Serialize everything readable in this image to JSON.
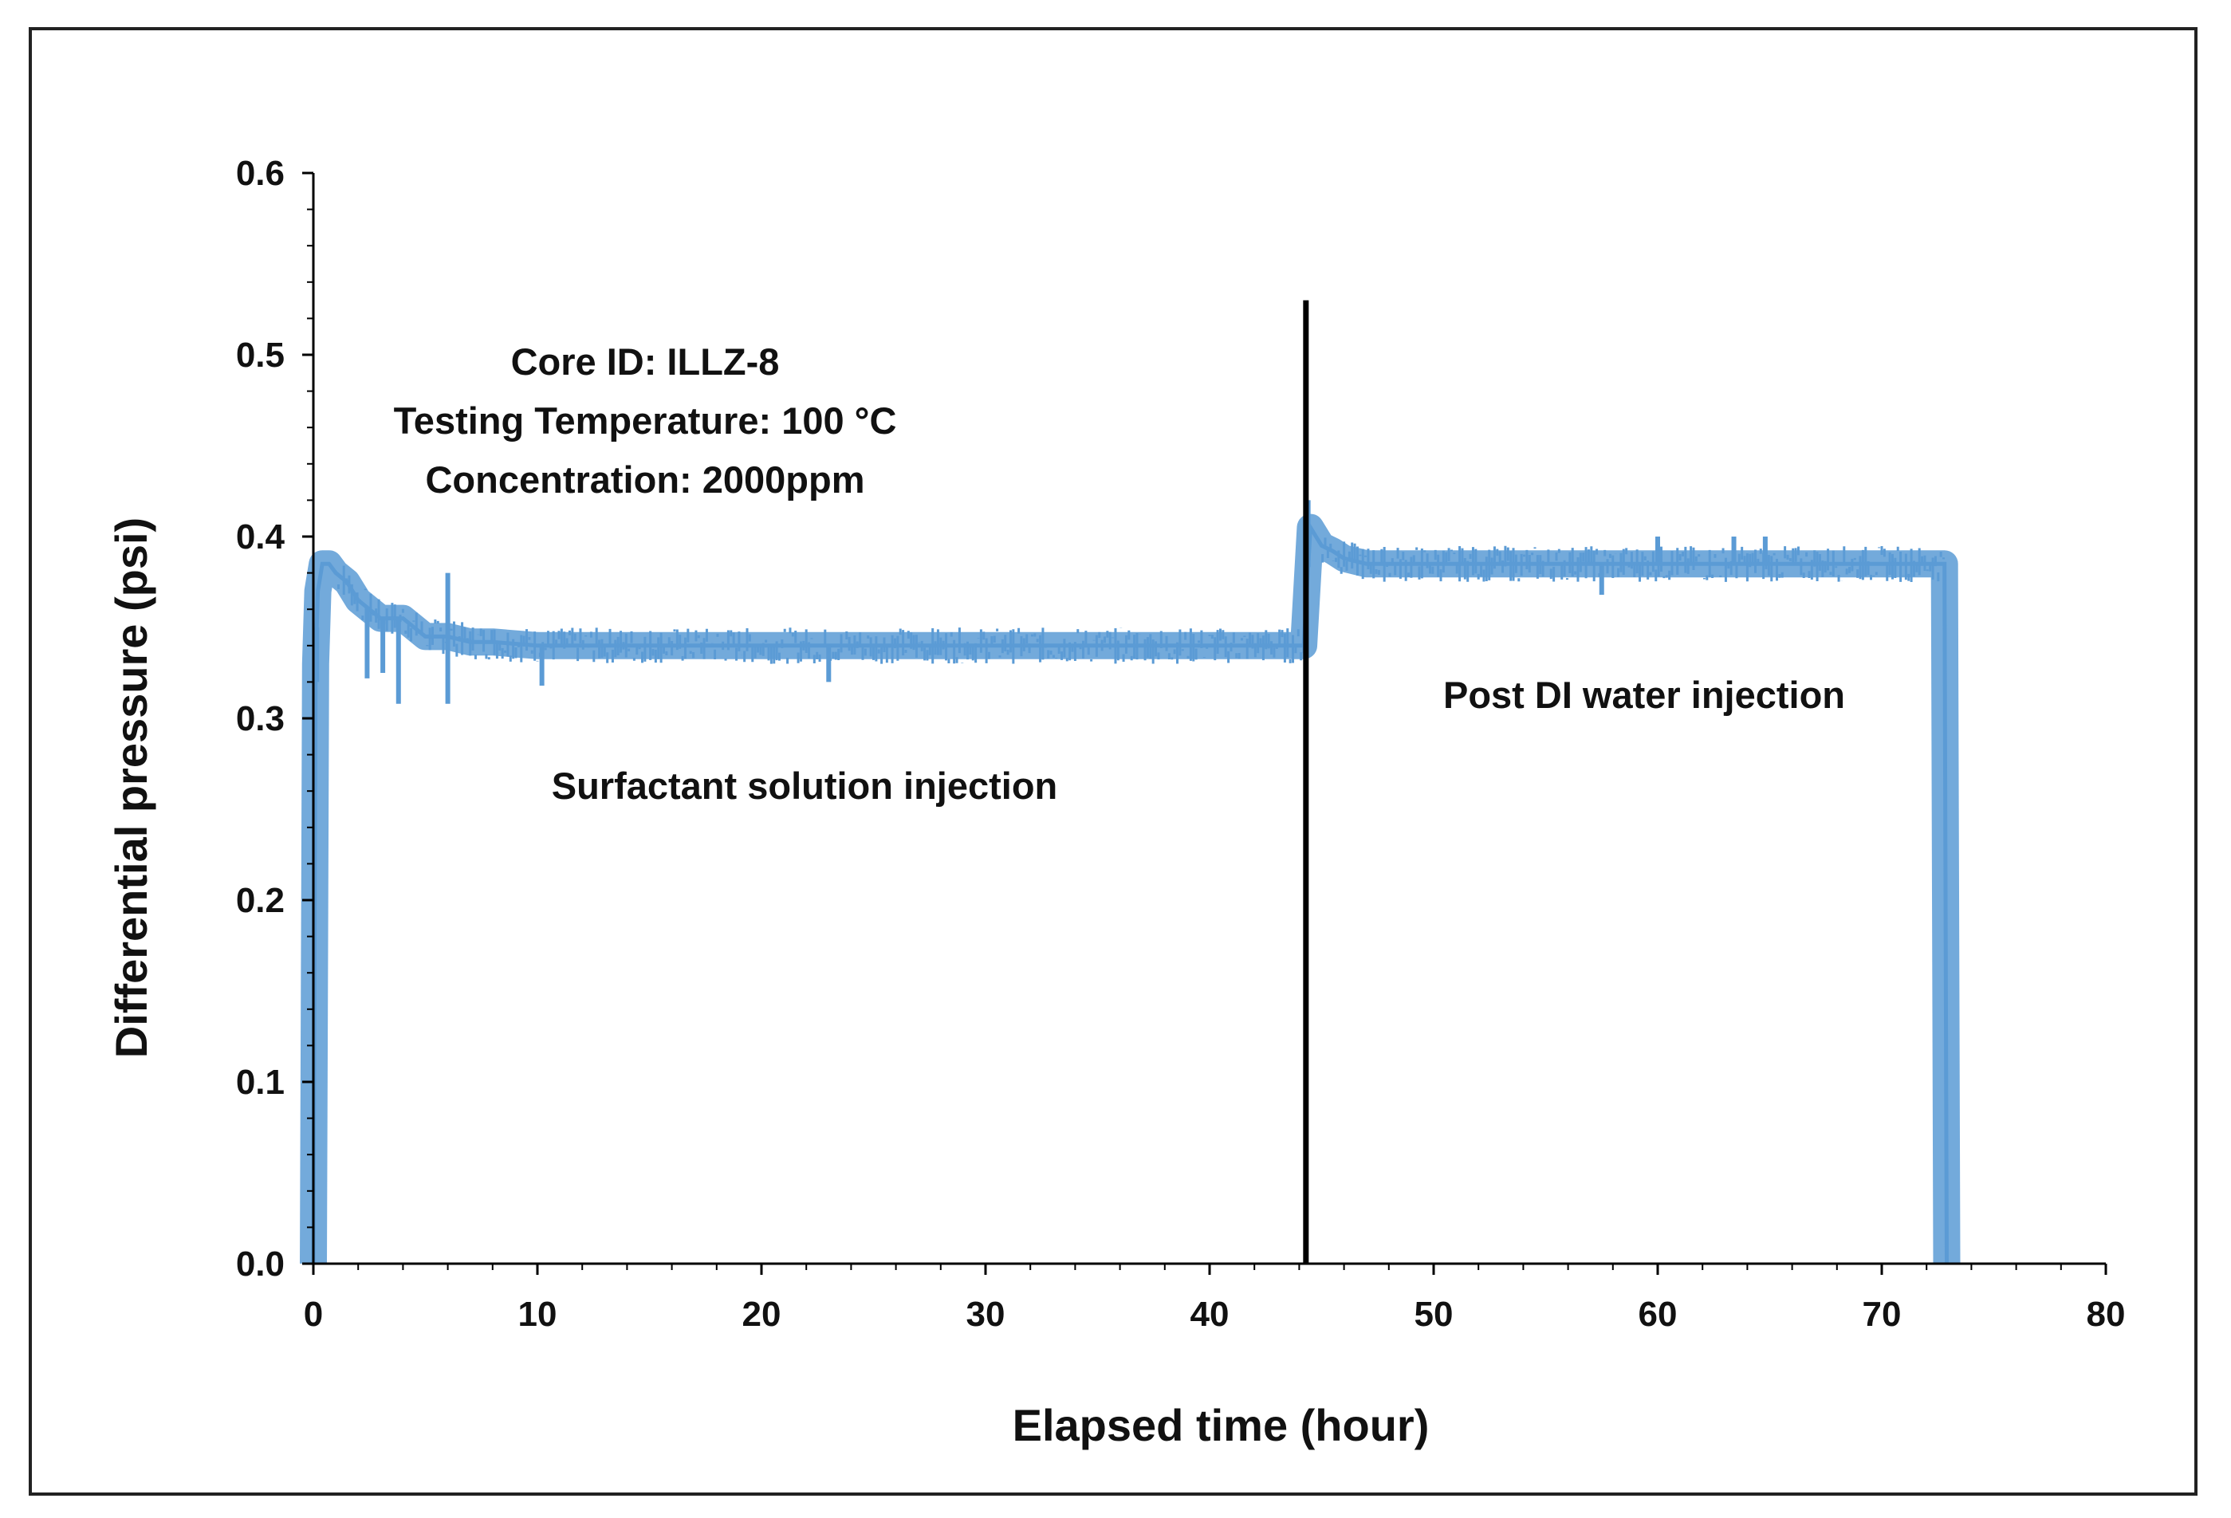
{
  "chart_data": {
    "type": "line",
    "title": "",
    "xlabel": "Elapsed time (hour)",
    "ylabel": "Differential pressure (psi)",
    "xlim": [
      0,
      80
    ],
    "ylim": [
      0,
      0.6
    ],
    "xticks": [
      0,
      10,
      20,
      30,
      40,
      50,
      60,
      70,
      80
    ],
    "xtick_labels": [
      "0",
      "10",
      "20",
      "30",
      "40",
      "50",
      "60",
      "70",
      "80"
    ],
    "yticks": [
      0,
      0.1,
      0.2,
      0.3,
      0.4,
      0.5,
      0.6
    ],
    "ytick_labels": [
      "0.0",
      "0.1",
      "0.2",
      "0.3",
      "0.4",
      "0.5",
      "0.6"
    ],
    "grid": false,
    "series_color": "#5b9bd5",
    "divider_color": "#000000",
    "divider_x": 44.3,
    "annotations": {
      "core_id": "Core ID: ILLZ-8",
      "temperature": "Testing Temperature: 100 °C",
      "concentration": "Concentration: 2000ppm",
      "phase1": "Surfactant solution injection",
      "phase2": "Post DI water injection"
    },
    "series": [
      {
        "name": "Differential pressure",
        "x": [
          0,
          0.1,
          0.2,
          0.4,
          0.7,
          1.0,
          1.5,
          2.0,
          2.5,
          3.0,
          4.0,
          5.0,
          6.0,
          7.0,
          8.0,
          10.0,
          15.0,
          20.0,
          25.0,
          30.0,
          35.0,
          40.0,
          44.2,
          44.5,
          45.0,
          45.5,
          46.0,
          47.0,
          48.0,
          50.0,
          55.0,
          60.0,
          65.0,
          70.0,
          72.8,
          72.9
        ],
        "y": [
          0.0,
          0.33,
          0.37,
          0.385,
          0.385,
          0.38,
          0.375,
          0.365,
          0.36,
          0.355,
          0.355,
          0.345,
          0.345,
          0.342,
          0.342,
          0.34,
          0.34,
          0.34,
          0.34,
          0.34,
          0.34,
          0.34,
          0.34,
          0.405,
          0.395,
          0.392,
          0.388,
          0.385,
          0.385,
          0.385,
          0.385,
          0.385,
          0.385,
          0.385,
          0.385,
          0.0
        ],
        "spikes": [
          {
            "x": 0.15,
            "y": 0.32
          },
          {
            "x": 2.4,
            "y": 0.322
          },
          {
            "x": 3.1,
            "y": 0.325
          },
          {
            "x": 3.8,
            "y": 0.308
          },
          {
            "x": 6.0,
            "y": 0.38
          },
          {
            "x": 6.0,
            "y": 0.308
          },
          {
            "x": 10.2,
            "y": 0.318
          },
          {
            "x": 23.0,
            "y": 0.32
          },
          {
            "x": 44.4,
            "y": 0.42
          },
          {
            "x": 57.5,
            "y": 0.368
          },
          {
            "x": 60.0,
            "y": 0.4
          },
          {
            "x": 63.4,
            "y": 0.4
          },
          {
            "x": 64.8,
            "y": 0.4
          }
        ]
      }
    ]
  }
}
